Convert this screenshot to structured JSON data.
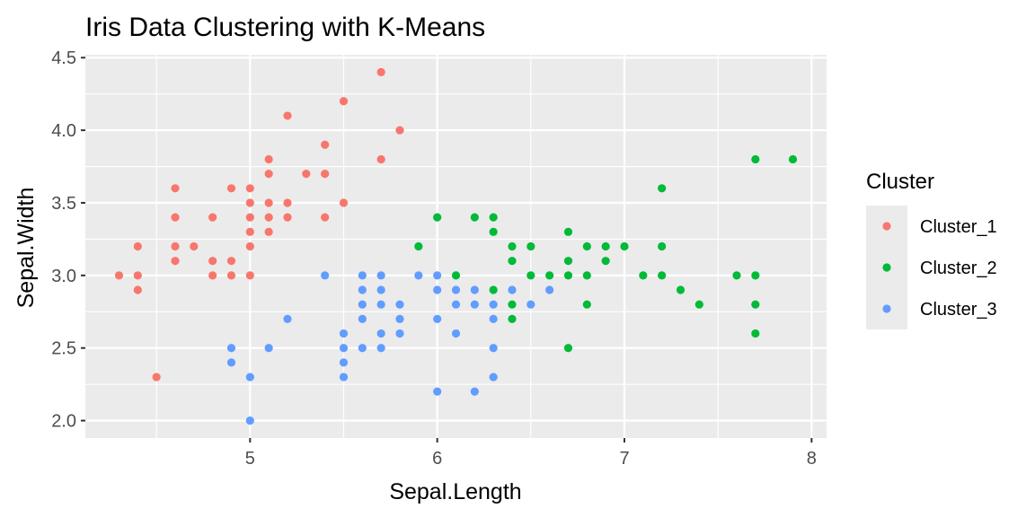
{
  "chart_data": {
    "type": "scatter",
    "title": "Iris Data Clustering with K-Means",
    "xlabel": "Sepal.Length",
    "ylabel": "Sepal.Width",
    "xlim": [
      4.12,
      8.08
    ],
    "ylim": [
      1.88,
      4.52
    ],
    "x_ticks": [
      5,
      6,
      7,
      8
    ],
    "y_ticks": [
      2.0,
      2.5,
      3.0,
      3.5,
      4.0,
      4.5
    ],
    "x_tick_labels": [
      "5",
      "6",
      "7",
      "8"
    ],
    "y_tick_labels": [
      "2.0",
      "2.5",
      "3.0",
      "3.5",
      "4.0",
      "4.5"
    ],
    "grid": true,
    "panel_background": "#ebebeb",
    "legend_title": "Cluster",
    "legend_position": "right",
    "series": [
      {
        "name": "Cluster_1",
        "color": "#F8766D",
        "points": [
          [
            4.3,
            3.0
          ],
          [
            4.4,
            2.9
          ],
          [
            4.4,
            3.0
          ],
          [
            4.4,
            3.2
          ],
          [
            4.5,
            2.3
          ],
          [
            4.6,
            3.1
          ],
          [
            4.6,
            3.2
          ],
          [
            4.6,
            3.4
          ],
          [
            4.6,
            3.6
          ],
          [
            4.7,
            3.2
          ],
          [
            4.8,
            3.0
          ],
          [
            4.8,
            3.1
          ],
          [
            4.8,
            3.4
          ],
          [
            4.9,
            3.0
          ],
          [
            4.9,
            3.1
          ],
          [
            4.9,
            3.6
          ],
          [
            5.0,
            3.0
          ],
          [
            5.0,
            3.2
          ],
          [
            5.0,
            3.3
          ],
          [
            5.0,
            3.4
          ],
          [
            5.0,
            3.5
          ],
          [
            5.0,
            3.6
          ],
          [
            5.1,
            3.3
          ],
          [
            5.1,
            3.4
          ],
          [
            5.1,
            3.5
          ],
          [
            5.1,
            3.7
          ],
          [
            5.1,
            3.8
          ],
          [
            5.2,
            3.4
          ],
          [
            5.2,
            3.5
          ],
          [
            5.2,
            4.1
          ],
          [
            5.3,
            3.7
          ],
          [
            5.4,
            3.4
          ],
          [
            5.4,
            3.7
          ],
          [
            5.4,
            3.9
          ],
          [
            5.5,
            3.5
          ],
          [
            5.5,
            4.2
          ],
          [
            5.7,
            3.8
          ],
          [
            5.7,
            4.4
          ],
          [
            5.8,
            4.0
          ]
        ]
      },
      {
        "name": "Cluster_2",
        "color": "#00BA38",
        "points": [
          [
            5.9,
            3.2
          ],
          [
            6.0,
            3.4
          ],
          [
            6.1,
            3.0
          ],
          [
            6.2,
            3.4
          ],
          [
            6.3,
            2.9
          ],
          [
            6.3,
            3.3
          ],
          [
            6.3,
            3.4
          ],
          [
            6.4,
            2.7
          ],
          [
            6.4,
            2.8
          ],
          [
            6.4,
            3.1
          ],
          [
            6.4,
            3.2
          ],
          [
            6.5,
            3.0
          ],
          [
            6.5,
            3.2
          ],
          [
            6.6,
            3.0
          ],
          [
            6.7,
            2.5
          ],
          [
            6.7,
            3.0
          ],
          [
            6.7,
            3.1
          ],
          [
            6.7,
            3.3
          ],
          [
            6.8,
            2.8
          ],
          [
            6.8,
            3.0
          ],
          [
            6.8,
            3.2
          ],
          [
            6.9,
            3.1
          ],
          [
            6.9,
            3.2
          ],
          [
            7.0,
            3.2
          ],
          [
            7.1,
            3.0
          ],
          [
            7.2,
            3.0
          ],
          [
            7.2,
            3.2
          ],
          [
            7.2,
            3.6
          ],
          [
            7.3,
            2.9
          ],
          [
            7.4,
            2.8
          ],
          [
            7.6,
            3.0
          ],
          [
            7.7,
            2.6
          ],
          [
            7.7,
            2.8
          ],
          [
            7.7,
            3.0
          ],
          [
            7.7,
            3.8
          ],
          [
            7.9,
            3.8
          ]
        ]
      },
      {
        "name": "Cluster_3",
        "color": "#619CFF",
        "points": [
          [
            4.9,
            2.4
          ],
          [
            4.9,
            2.5
          ],
          [
            5.0,
            2.0
          ],
          [
            5.0,
            2.3
          ],
          [
            5.1,
            2.5
          ],
          [
            5.2,
            2.7
          ],
          [
            5.4,
            3.0
          ],
          [
            5.5,
            2.3
          ],
          [
            5.5,
            2.4
          ],
          [
            5.5,
            2.5
          ],
          [
            5.5,
            2.6
          ],
          [
            5.6,
            2.5
          ],
          [
            5.6,
            2.7
          ],
          [
            5.6,
            2.8
          ],
          [
            5.6,
            2.9
          ],
          [
            5.6,
            3.0
          ],
          [
            5.7,
            2.5
          ],
          [
            5.7,
            2.6
          ],
          [
            5.7,
            2.8
          ],
          [
            5.7,
            2.9
          ],
          [
            5.7,
            3.0
          ],
          [
            5.8,
            2.6
          ],
          [
            5.8,
            2.7
          ],
          [
            5.8,
            2.8
          ],
          [
            5.9,
            3.0
          ],
          [
            6.0,
            2.2
          ],
          [
            6.0,
            2.7
          ],
          [
            6.0,
            2.9
          ],
          [
            6.0,
            3.0
          ],
          [
            6.1,
            2.6
          ],
          [
            6.1,
            2.8
          ],
          [
            6.1,
            2.9
          ],
          [
            6.2,
            2.2
          ],
          [
            6.2,
            2.8
          ],
          [
            6.2,
            2.9
          ],
          [
            6.3,
            2.3
          ],
          [
            6.3,
            2.5
          ],
          [
            6.3,
            2.7
          ],
          [
            6.3,
            2.8
          ],
          [
            6.4,
            2.9
          ],
          [
            6.5,
            2.8
          ],
          [
            6.6,
            2.9
          ]
        ]
      }
    ]
  }
}
